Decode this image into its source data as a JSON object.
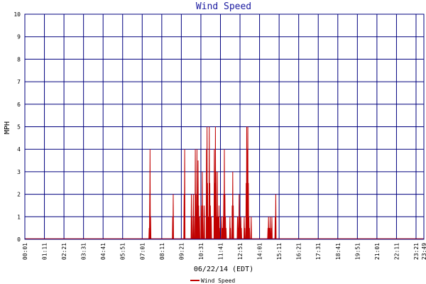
{
  "chart_data": {
    "type": "line",
    "title": "Wind Speed",
    "xlabel": "06/22/14 (EDT)",
    "ylabel": "MPH",
    "ylim": [
      0,
      10
    ],
    "xlim_minutes": [
      1,
      1429
    ],
    "yticks": [
      "0",
      "1",
      "2",
      "3",
      "4",
      "5",
      "6",
      "7",
      "8",
      "9",
      "10"
    ],
    "xticks": [
      {
        "label": "00:01",
        "minute": 1
      },
      {
        "label": "01:11",
        "minute": 71
      },
      {
        "label": "02:21",
        "minute": 141
      },
      {
        "label": "03:31",
        "minute": 211
      },
      {
        "label": "04:41",
        "minute": 281
      },
      {
        "label": "05:51",
        "minute": 351
      },
      {
        "label": "07:01",
        "minute": 421
      },
      {
        "label": "08:11",
        "minute": 491
      },
      {
        "label": "09:21",
        "minute": 561
      },
      {
        "label": "10:31",
        "minute": 631
      },
      {
        "label": "11:41",
        "minute": 701
      },
      {
        "label": "12:51",
        "minute": 771
      },
      {
        "label": "14:01",
        "minute": 841
      },
      {
        "label": "15:11",
        "minute": 911
      },
      {
        "label": "16:21",
        "minute": 981
      },
      {
        "label": "17:31",
        "minute": 1051
      },
      {
        "label": "18:41",
        "minute": 1121
      },
      {
        "label": "19:51",
        "minute": 1191
      },
      {
        "label": "21:01",
        "minute": 1261
      },
      {
        "label": "22:11",
        "minute": 1331
      },
      {
        "label": "23:21",
        "minute": 1401
      },
      {
        "label": "23:49",
        "minute": 1429
      }
    ],
    "grid": true,
    "legend_position": "bottom-left",
    "colors": {
      "series": "#c00000",
      "grid": "#00007f",
      "title": "#1a1aa0",
      "background": "#ffffff"
    },
    "series": [
      {
        "name": "Wind Speed",
        "spikes": [
          [
            446,
            0.5
          ],
          [
            448,
            2
          ],
          [
            449,
            4
          ],
          [
            451,
            1
          ],
          [
            530,
            1
          ],
          [
            532,
            2
          ],
          [
            571,
            2
          ],
          [
            573,
            4
          ],
          [
            597,
            2
          ],
          [
            599,
            1
          ],
          [
            604,
            2
          ],
          [
            606,
            1
          ],
          [
            611,
            4
          ],
          [
            613,
            2
          ],
          [
            617,
            4
          ],
          [
            619,
            2
          ],
          [
            621,
            3.5
          ],
          [
            623,
            1.5
          ],
          [
            626,
            1
          ],
          [
            632,
            1.5
          ],
          [
            636,
            3
          ],
          [
            638,
            1.5
          ],
          [
            643,
            1.5
          ],
          [
            651,
            4
          ],
          [
            653,
            5
          ],
          [
            655,
            2.5
          ],
          [
            657,
            1
          ],
          [
            659,
            1
          ],
          [
            661,
            5
          ],
          [
            663,
            2.5
          ],
          [
            665,
            1.5
          ],
          [
            668,
            1
          ],
          [
            679,
            4
          ],
          [
            681,
            2.5
          ],
          [
            683,
            5
          ],
          [
            685,
            3
          ],
          [
            688,
            1
          ],
          [
            690,
            3
          ],
          [
            693,
            1
          ],
          [
            696,
            1.5
          ],
          [
            698,
            0.5
          ],
          [
            705,
            1
          ],
          [
            708,
            0.5
          ],
          [
            711,
            1
          ],
          [
            713,
            2
          ],
          [
            715,
            4
          ],
          [
            717,
            2
          ],
          [
            719,
            1
          ],
          [
            721,
            0.5
          ],
          [
            735,
            1
          ],
          [
            737,
            0.5
          ],
          [
            743,
            1.5
          ],
          [
            745,
            3
          ],
          [
            747,
            1.5
          ],
          [
            762,
            1
          ],
          [
            764,
            0.5
          ],
          [
            766,
            1
          ],
          [
            768,
            2
          ],
          [
            770,
            1
          ],
          [
            772,
            0.5
          ],
          [
            774,
            1
          ],
          [
            776,
            0.5
          ],
          [
            786,
            1
          ],
          [
            788,
            0.5
          ],
          [
            793,
            2.5
          ],
          [
            795,
            5
          ],
          [
            797,
            4
          ],
          [
            799,
            5
          ],
          [
            801,
            2.5
          ],
          [
            803,
            1
          ],
          [
            805,
            0.5
          ],
          [
            811,
            1
          ],
          [
            871,
            0.5
          ],
          [
            873,
            1
          ],
          [
            876,
            0.5
          ],
          [
            879,
            1
          ],
          [
            883,
            0.5
          ],
          [
            885,
            1
          ],
          [
            897,
            1
          ],
          [
            899,
            2
          ]
        ]
      }
    ]
  }
}
